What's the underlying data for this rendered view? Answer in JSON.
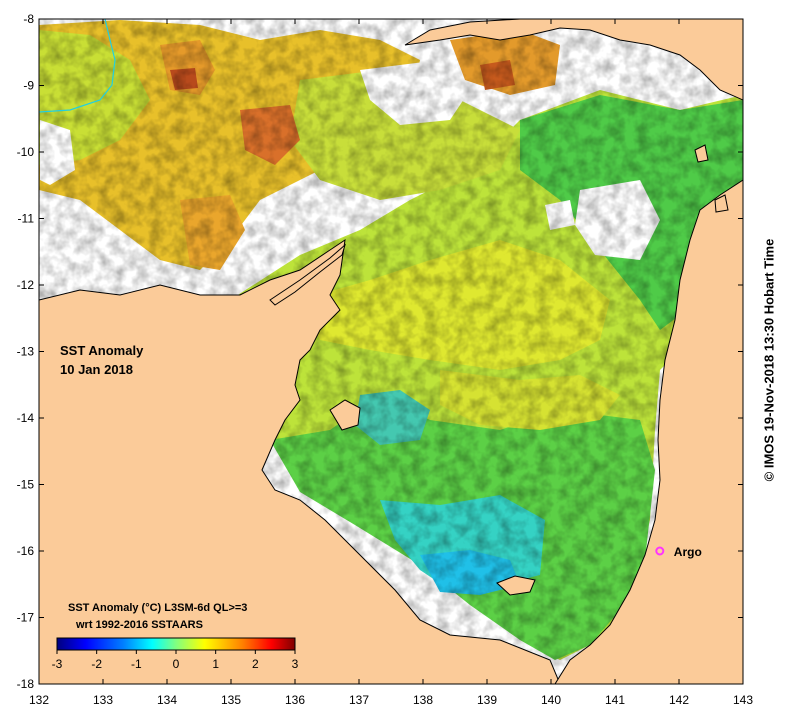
{
  "map": {
    "title_line1": "SST Anomaly",
    "title_line2": "10 Jan 2018",
    "colorbar": {
      "title_line1": "SST Anomaly (°C) L3SM-6d QL>=3",
      "title_line2": "wrt 1992-2016 SSTAARS",
      "ticks": [
        "-3",
        "-2",
        "-1",
        "0",
        "1",
        "2",
        "3"
      ],
      "colors": [
        "#00007f",
        "#0000ff",
        "#0080ff",
        "#00ffff",
        "#80ff80",
        "#ffff00",
        "#ff8000",
        "#ff0000",
        "#7f0000"
      ]
    },
    "marker": {
      "label": "Argo",
      "lon": 141.7,
      "lat": -16.0,
      "color": "#ff33ff"
    },
    "credit": "© IMOS 19-Nov-2018 13:30 Hobart Time",
    "lon_labels": [
      "132",
      "133",
      "134",
      "135",
      "136",
      "137",
      "138",
      "139",
      "140",
      "141",
      "142",
      "143"
    ],
    "lat_labels": [
      "-8",
      "-9",
      "-10",
      "-11",
      "-12",
      "-13",
      "-14",
      "-15",
      "-16",
      "-17",
      "-18"
    ],
    "land_color": "#fbcb99",
    "ocean_nodata_color": "#ffffff"
  }
}
